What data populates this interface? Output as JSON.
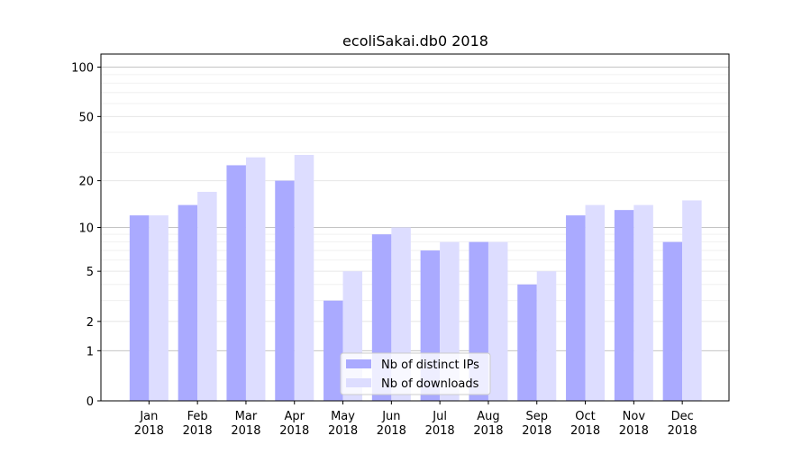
{
  "chart_data": {
    "type": "bar",
    "title": "ecoliSakai.db0 2018",
    "xlabel": "",
    "ylabel": "",
    "y_scale": "log(1+y)",
    "ylim": [
      0,
      120
    ],
    "y_ticks": [
      0,
      1,
      2,
      5,
      10,
      20,
      50,
      100
    ],
    "categories": [
      "Jan\n2018",
      "Feb\n2018",
      "Mar\n2018",
      "Apr\n2018",
      "May\n2018",
      "Jun\n2018",
      "Jul\n2018",
      "Aug\n2018",
      "Sep\n2018",
      "Oct\n2018",
      "Nov\n2018",
      "Dec\n2018"
    ],
    "series": [
      {
        "name": "Nb of distinct IPs",
        "color": "#aaaaff",
        "values": [
          12,
          14,
          25,
          20,
          3,
          9,
          7,
          8,
          4,
          12,
          13,
          8
        ]
      },
      {
        "name": "Nb of downloads",
        "color": "#ddddff",
        "values": [
          12,
          17,
          28,
          29,
          5,
          10,
          8,
          8,
          5,
          14,
          14,
          15
        ]
      }
    ],
    "grid": true,
    "legend_position": "lower-center"
  }
}
